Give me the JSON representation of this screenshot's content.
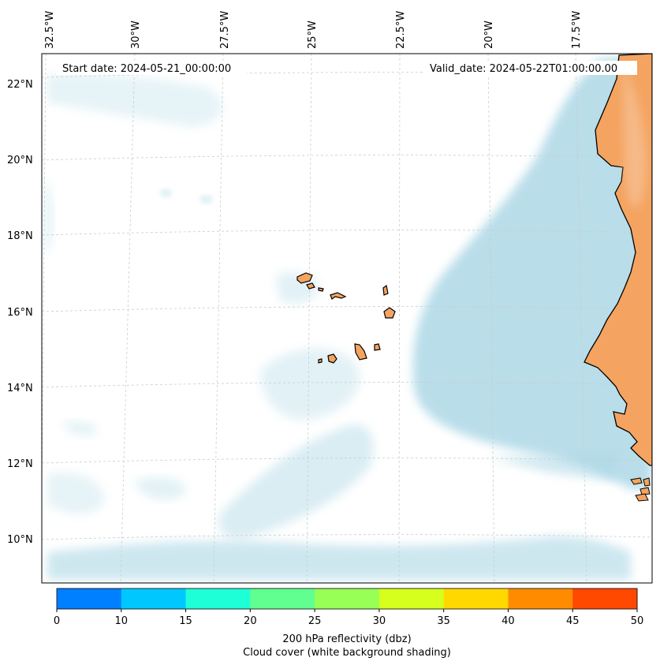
{
  "map": {
    "header_left": "Start date: 2024-05-21_00:00:00",
    "header_right": "Valid_date: 2024-05-22T01:00:00.00",
    "lon_labels": [
      "32.5°W",
      "30°W",
      "27.5°W",
      "25°W",
      "22.5°W",
      "20°W",
      "17.5°W"
    ],
    "lat_labels": [
      "22°N",
      "20°N",
      "18°N",
      "16°N",
      "14°N",
      "12°N",
      "10°N"
    ],
    "colors": {
      "land": "#f4a460",
      "cloud": "#add8e6",
      "ocean": "#ffffff",
      "coast": "#000000",
      "grid": "#cccccc"
    }
  },
  "colorbar": {
    "ticks": [
      "0",
      "10",
      "15",
      "20",
      "25",
      "30",
      "35",
      "40",
      "45",
      "50"
    ],
    "colors": [
      "#0080ff",
      "#00c8ff",
      "#1effd8",
      "#60ff90",
      "#98ff56",
      "#d6ff1e",
      "#ffd800",
      "#ff8c00",
      "#ff4800"
    ],
    "title_line1": "200 hPa reflectivity (dbz)",
    "title_line2": "Cloud cover (white background shading)"
  }
}
